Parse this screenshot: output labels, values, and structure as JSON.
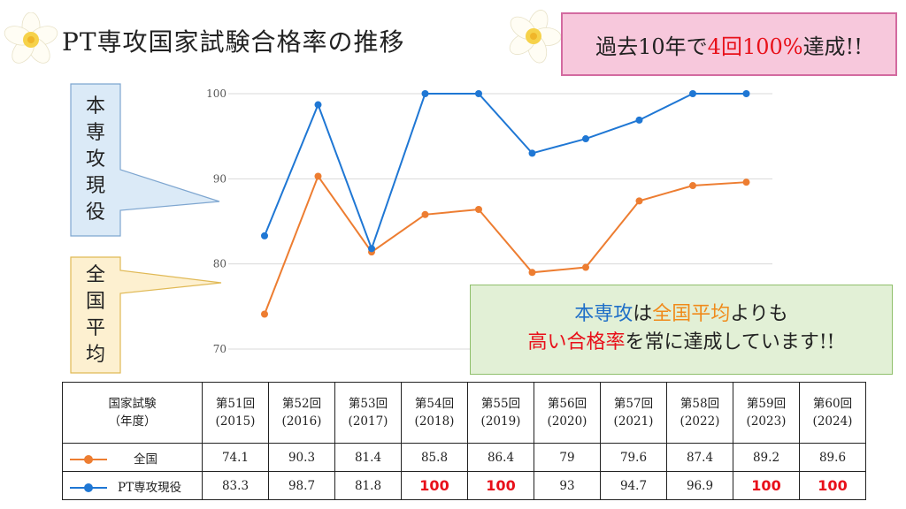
{
  "title": "PT専攻国家試験合格率の推移",
  "banner": {
    "prefix": "過去10年で",
    "highlight": "4回100%",
    "suffix": "達成!!"
  },
  "callouts": {
    "school": [
      "本",
      "専",
      "攻",
      "現",
      "役"
    ],
    "national": [
      "全",
      "国",
      "平",
      "均"
    ]
  },
  "summary": {
    "line1": [
      {
        "text": "本専攻",
        "color": "blue"
      },
      {
        "text": "は",
        "color": "black"
      },
      {
        "text": "全国平均",
        "color": "orange"
      },
      {
        "text": "よりも",
        "color": "black"
      }
    ],
    "line2": [
      {
        "text": "高い合格率",
        "color": "red"
      },
      {
        "text": "を常に達成しています!!",
        "color": "black"
      }
    ]
  },
  "colors": {
    "school": "#1f77d4",
    "national": "#ed7d31",
    "highlight": "#e8101a",
    "grid": "#d9d9d9"
  },
  "chart_data": {
    "type": "line",
    "x": [
      "第51回(2015)",
      "第52回(2016)",
      "第53回(2017)",
      "第54回(2018)",
      "第55回(2019)",
      "第56回(2020)",
      "第57回(2021)",
      "第58回(2022)",
      "第59回(2023)",
      "第60回(2024)"
    ],
    "series": [
      {
        "name": "全国",
        "color": "#ed7d31",
        "values": [
          74.1,
          90.3,
          81.4,
          85.8,
          86.4,
          79,
          79.6,
          87.4,
          89.2,
          89.6
        ]
      },
      {
        "name": "PT専攻現役",
        "color": "#1f77d4",
        "values": [
          83.3,
          98.7,
          81.8,
          100,
          100,
          93,
          94.7,
          96.9,
          100,
          100
        ]
      }
    ],
    "y_ticks": [
      "100",
      "90",
      "80",
      "70"
    ],
    "ylim": [
      70,
      100
    ],
    "grid": true
  },
  "table": {
    "header_label": [
      "国家試験",
      "（年度）"
    ],
    "columns": [
      [
        "第51回",
        "(2015)"
      ],
      [
        "第52回",
        "(2016)"
      ],
      [
        "第53回",
        "(2017)"
      ],
      [
        "第54回",
        "(2018)"
      ],
      [
        "第55回",
        "(2019)"
      ],
      [
        "第56回",
        "(2020)"
      ],
      [
        "第57回",
        "(2021)"
      ],
      [
        "第58回",
        "(2022)"
      ],
      [
        "第59回",
        "(2023)"
      ],
      [
        "第60回",
        "(2024)"
      ]
    ],
    "rows": [
      {
        "label": "全国",
        "color": "#ed7d31",
        "values": [
          "74.1",
          "90.3",
          "81.4",
          "85.8",
          "86.4",
          "79",
          "79.6",
          "87.4",
          "89.2",
          "89.6"
        ]
      },
      {
        "label": "PT専攻現役",
        "color": "#1f77d4",
        "values": [
          "83.3",
          "98.7",
          "81.8",
          "100",
          "100",
          "93",
          "94.7",
          "96.9",
          "100",
          "100"
        ]
      }
    ]
  }
}
